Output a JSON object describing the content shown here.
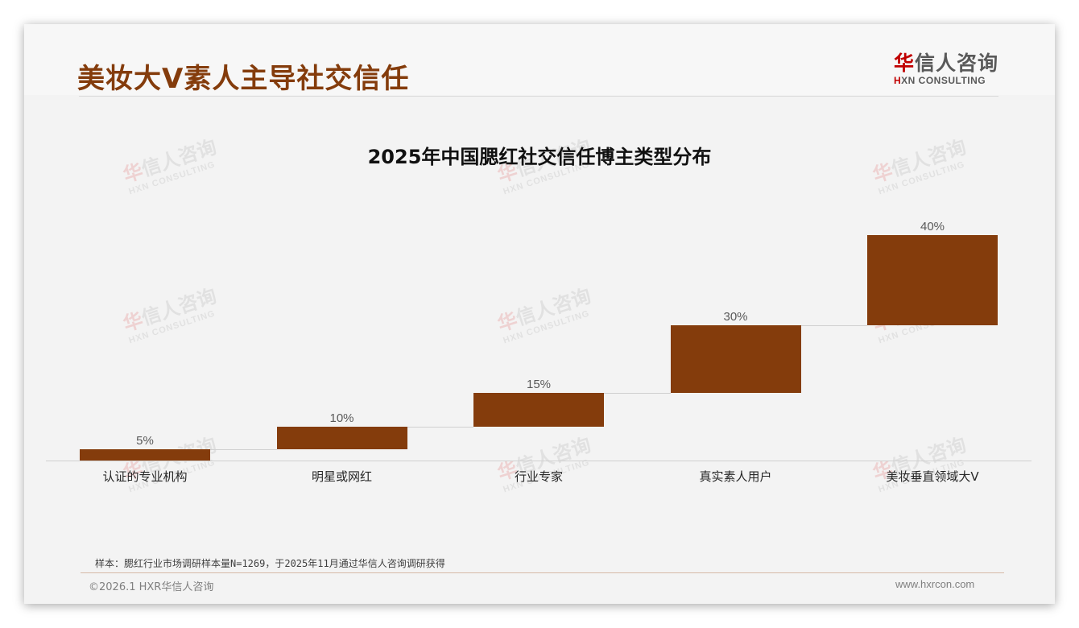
{
  "header": {
    "title": "美妆大V素人主导社交信任",
    "logo": {
      "cn_mark": "华",
      "cn_rest": "信人咨询",
      "en_mark": "H",
      "en_rest": "XN CONSULTING"
    }
  },
  "watermark": {
    "cn_mark": "华",
    "cn_rest": "信人咨询",
    "en": "HXN CONSULTING"
  },
  "colors": {
    "bar": "#843c0c",
    "title": "#843c0c",
    "logo_accent": "#c00000",
    "background": "#f3f3f3"
  },
  "chart_data": {
    "type": "bar",
    "subtype": "waterfall",
    "title": "2025年中国腮红社交信任博主类型分布",
    "categories": [
      "认证的专业机构",
      "明星或网红",
      "行业专家",
      "真实素人用户",
      "美妆垂直领域大V"
    ],
    "values": [
      5,
      10,
      15,
      30,
      40
    ],
    "value_labels": [
      "5%",
      "10%",
      "15%",
      "30%",
      "40%"
    ],
    "unit": "%",
    "xlabel": "",
    "ylabel": "",
    "grid": false,
    "legend": "none",
    "connectors": true
  },
  "footer": {
    "note": "样本：腮红行业市场调研样本量N=1269，于2025年11月通过华信人咨询调研获得",
    "copyright": "©2026.1 HXR华信人咨询",
    "website": "www.hxrcon.com"
  }
}
